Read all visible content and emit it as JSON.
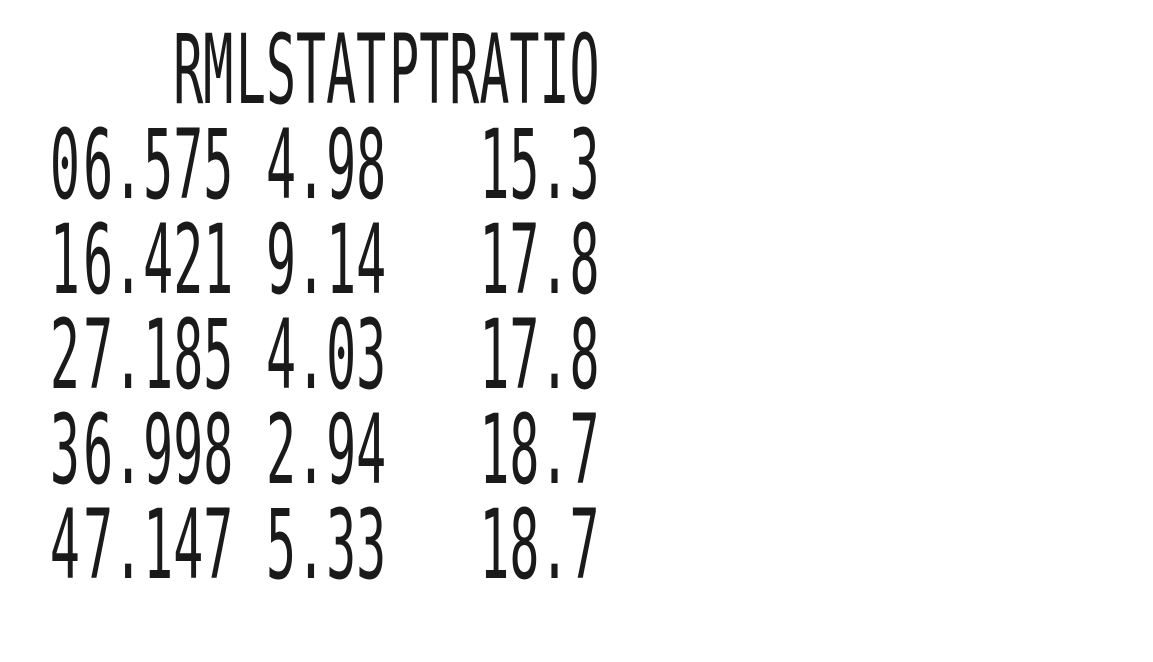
{
  "columns": [
    "RM",
    "LSTAT",
    "PTRATIO"
  ],
  "rows": [
    {
      "index": "0",
      "RM": "6.575",
      "LSTAT": "4.98",
      "PTRATIO": "15.3"
    },
    {
      "index": "1",
      "RM": "6.421",
      "LSTAT": "9.14",
      "PTRATIO": "17.8"
    },
    {
      "index": "2",
      "RM": "7.185",
      "LSTAT": "4.03",
      "PTRATIO": "17.8"
    },
    {
      "index": "3",
      "RM": "6.998",
      "LSTAT": "2.94",
      "PTRATIO": "18.7"
    },
    {
      "index": "4",
      "RM": "7.147",
      "LSTAT": "5.33",
      "PTRATIO": "18.7"
    }
  ]
}
